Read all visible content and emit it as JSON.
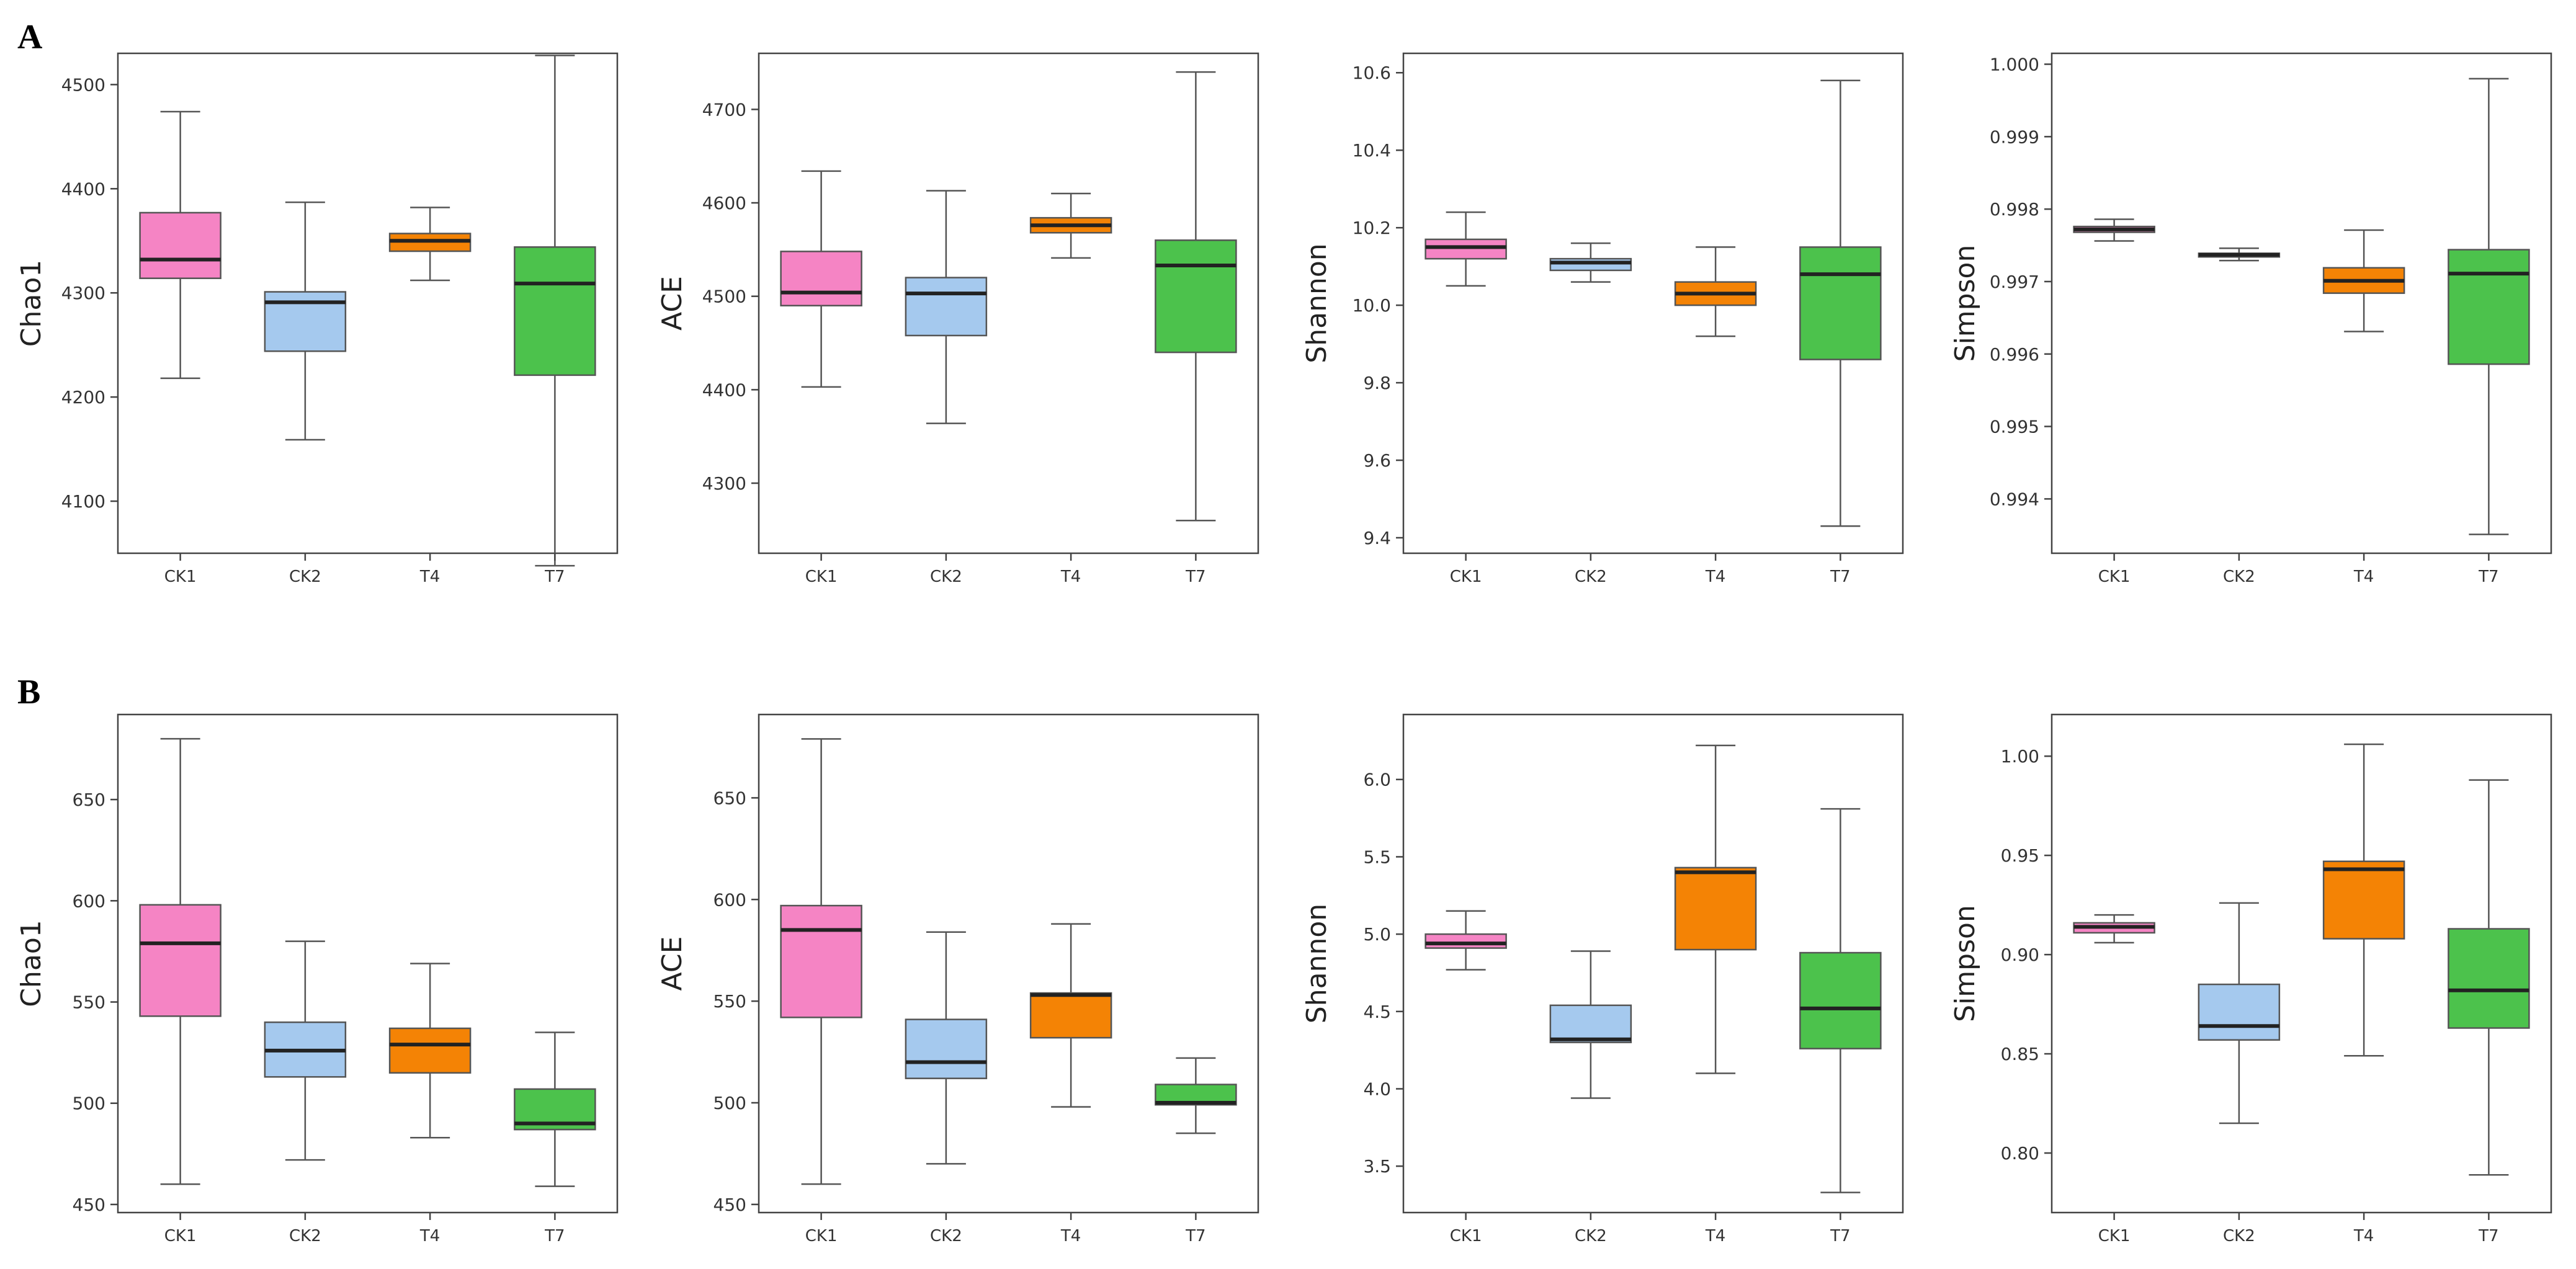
{
  "colors": {
    "CK1": "#f584c4",
    "CK2": "#a5c9ee",
    "T4": "#f48305",
    "T7": "#4cc24c"
  },
  "chart_data": [
    {
      "type": "box",
      "panel": "A",
      "ylabel": "Chao1",
      "yticks": [
        "4100",
        "4200",
        "4300",
        "4400",
        "4500"
      ],
      "ylim": [
        4050,
        4530
      ],
      "categories": [
        "CK1",
        "CK2",
        "T4",
        "T7"
      ],
      "boxes": [
        {
          "min": 4218,
          "q1": 4314,
          "median": 4332,
          "q3": 4377,
          "max": 4474
        },
        {
          "min": 4159,
          "q1": 4244,
          "median": 4291,
          "q3": 4301,
          "max": 4387
        },
        {
          "min": 4312,
          "q1": 4340,
          "median": 4350,
          "q3": 4357,
          "max": 4382
        },
        {
          "min": 4038,
          "q1": 4221,
          "median": 4309,
          "q3": 4344,
          "max": 4528
        }
      ]
    },
    {
      "type": "box",
      "panel": "A",
      "ylabel": "ACE",
      "yticks": [
        "4300",
        "4400",
        "4500",
        "4600",
        "4700"
      ],
      "ylim": [
        4225,
        4760
      ],
      "categories": [
        "CK1",
        "CK2",
        "T4",
        "T7"
      ],
      "boxes": [
        {
          "min": 4403,
          "q1": 4490,
          "median": 4504,
          "q3": 4548,
          "max": 4634
        },
        {
          "min": 4364,
          "q1": 4458,
          "median": 4503,
          "q3": 4520,
          "max": 4613
        },
        {
          "min": 4541,
          "q1": 4568,
          "median": 4576,
          "q3": 4584,
          "max": 4610
        },
        {
          "min": 4260,
          "q1": 4440,
          "median": 4533,
          "q3": 4560,
          "max": 4740
        }
      ]
    },
    {
      "type": "box",
      "panel": "A",
      "ylabel": "Shannon",
      "yticks": [
        "9.4",
        "9.6",
        "9.8",
        "10.0",
        "10.2",
        "10.4",
        "10.6"
      ],
      "ylim": [
        9.36,
        10.65
      ],
      "categories": [
        "CK1",
        "CK2",
        "T4",
        "T7"
      ],
      "boxes": [
        {
          "min": 10.05,
          "q1": 10.12,
          "median": 10.15,
          "q3": 10.17,
          "max": 10.24
        },
        {
          "min": 10.06,
          "q1": 10.09,
          "median": 10.11,
          "q3": 10.12,
          "max": 10.16
        },
        {
          "min": 9.92,
          "q1": 10.0,
          "median": 10.03,
          "q3": 10.06,
          "max": 10.15
        },
        {
          "min": 9.43,
          "q1": 9.86,
          "median": 10.08,
          "q3": 10.15,
          "max": 10.58
        }
      ]
    },
    {
      "type": "box",
      "panel": "A",
      "ylabel": "Simpson",
      "yticks": [
        "0.994",
        "0.995",
        "0.996",
        "0.997",
        "0.998",
        "0.999",
        "1.000"
      ],
      "ylim": [
        0.99325,
        1.00015
      ],
      "categories": [
        "CK1",
        "CK2",
        "T4",
        "T7"
      ],
      "boxes": [
        {
          "min": 0.99756,
          "q1": 0.99768,
          "median": 0.99772,
          "q3": 0.99776,
          "max": 0.99786
        },
        {
          "min": 0.99729,
          "q1": 0.99734,
          "median": 0.99737,
          "q3": 0.99739,
          "max": 0.99746
        },
        {
          "min": 0.99631,
          "q1": 0.99684,
          "median": 0.99701,
          "q3": 0.99719,
          "max": 0.99771
        },
        {
          "min": 0.99351,
          "q1": 0.99586,
          "median": 0.99711,
          "q3": 0.99744,
          "max": 0.9998
        }
      ]
    },
    {
      "type": "box",
      "panel": "B",
      "ylabel": "Chao1",
      "yticks": [
        "450",
        "500",
        "550",
        "600",
        "650"
      ],
      "ylim": [
        446,
        692
      ],
      "categories": [
        "CK1",
        "CK2",
        "T4",
        "T7"
      ],
      "boxes": [
        {
          "min": 460,
          "q1": 543,
          "median": 579,
          "q3": 598,
          "max": 680
        },
        {
          "min": 472,
          "q1": 513,
          "median": 526,
          "q3": 540,
          "max": 580
        },
        {
          "min": 483,
          "q1": 515,
          "median": 529,
          "q3": 537,
          "max": 569
        },
        {
          "min": 459,
          "q1": 487,
          "median": 490,
          "q3": 507,
          "max": 535
        }
      ]
    },
    {
      "type": "box",
      "panel": "B",
      "ylabel": "ACE",
      "yticks": [
        "450",
        "500",
        "550",
        "600",
        "650"
      ],
      "ylim": [
        446,
        691
      ],
      "categories": [
        "CK1",
        "CK2",
        "T4",
        "T7"
      ],
      "boxes": [
        {
          "min": 460,
          "q1": 542,
          "median": 585,
          "q3": 597,
          "max": 679
        },
        {
          "min": 470,
          "q1": 512,
          "median": 520,
          "q3": 541,
          "max": 584
        },
        {
          "min": 498,
          "q1": 532,
          "median": 553,
          "q3": 554,
          "max": 588
        },
        {
          "min": 485,
          "q1": 499,
          "median": 500,
          "q3": 509,
          "max": 522
        }
      ]
    },
    {
      "type": "box",
      "panel": "B",
      "ylabel": "Shannon",
      "yticks": [
        "3.5",
        "4.0",
        "4.5",
        "5.0",
        "5.5",
        "6.0"
      ],
      "ylim": [
        3.2,
        6.42
      ],
      "categories": [
        "CK1",
        "CK2",
        "T4",
        "T7"
      ],
      "boxes": [
        {
          "min": 4.77,
          "q1": 4.91,
          "median": 4.94,
          "q3": 5.0,
          "max": 5.15
        },
        {
          "min": 3.94,
          "q1": 4.3,
          "median": 4.32,
          "q3": 4.54,
          "max": 4.89
        },
        {
          "min": 4.1,
          "q1": 4.9,
          "median": 5.4,
          "q3": 5.43,
          "max": 6.22
        },
        {
          "min": 3.33,
          "q1": 4.26,
          "median": 4.52,
          "q3": 4.88,
          "max": 5.81
        }
      ]
    },
    {
      "type": "box",
      "panel": "B",
      "ylabel": "Simpson",
      "yticks": [
        "0.80",
        "0.85",
        "0.90",
        "0.95",
        "1.00"
      ],
      "ylim": [
        0.77,
        1.021
      ],
      "categories": [
        "CK1",
        "CK2",
        "T4",
        "T7"
      ],
      "boxes": [
        {
          "min": 0.906,
          "q1": 0.911,
          "median": 0.914,
          "q3": 0.916,
          "max": 0.92
        },
        {
          "min": 0.815,
          "q1": 0.857,
          "median": 0.864,
          "q3": 0.885,
          "max": 0.926
        },
        {
          "min": 0.849,
          "q1": 0.908,
          "median": 0.943,
          "q3": 0.947,
          "max": 1.006
        },
        {
          "min": 0.789,
          "q1": 0.863,
          "median": 0.882,
          "q3": 0.913,
          "max": 0.988
        }
      ]
    }
  ],
  "panel_labels": [
    "A",
    "B"
  ]
}
